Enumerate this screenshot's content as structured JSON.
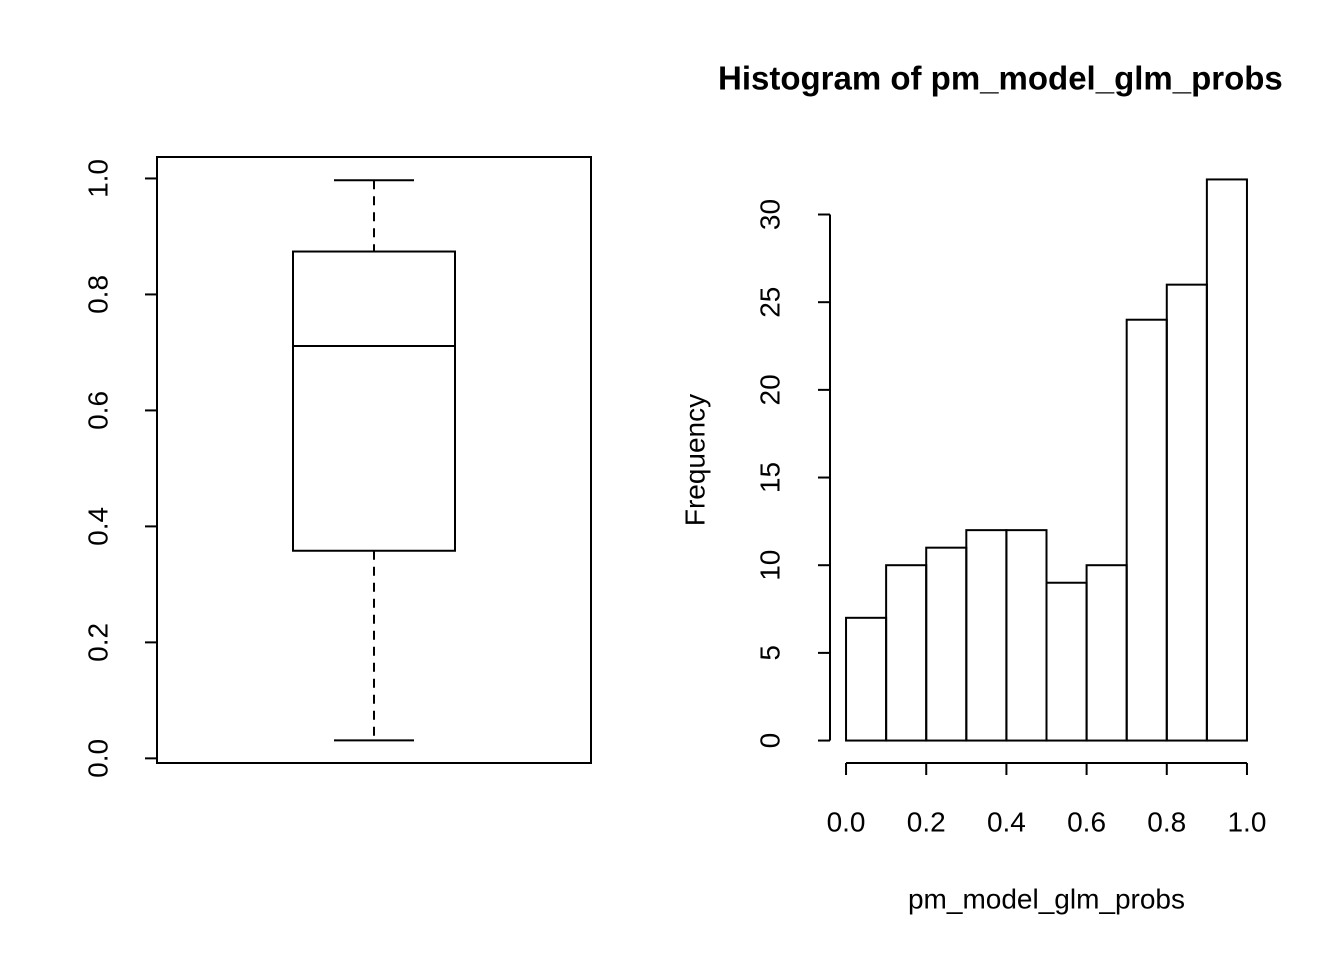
{
  "chart_data": [
    {
      "type": "box",
      "stats": {
        "min": 0.031,
        "q1": 0.358,
        "median": 0.711,
        "q3": 0.874,
        "max": 0.997
      },
      "ylim": [
        -0.008,
        1.037
      ],
      "yticks": [
        {
          "value": 0,
          "label": "0.0"
        },
        0.2,
        0.4,
        0.6,
        0.8,
        {
          "value": 1,
          "label": "1.0"
        }
      ]
    },
    {
      "type": "histogram",
      "title": "Histogram of pm_model_glm_probs",
      "xlabel": "pm_model_glm_probs",
      "ylabel": "Frequency",
      "bins": [
        0,
        0.1,
        0.2,
        0.3,
        0.4,
        0.5,
        0.6,
        0.7,
        0.8,
        0.9,
        1
      ],
      "values": [
        7,
        10,
        11,
        12,
        12,
        9,
        10,
        24,
        26,
        32
      ],
      "xlim": [
        -0.04,
        1.04
      ],
      "ylim": [
        -1.28,
        33.28
      ],
      "xticks": [
        {
          "value": 0,
          "label": "0.0"
        },
        0.2,
        0.4,
        0.6,
        0.8,
        {
          "value": 1,
          "label": "1.0"
        }
      ],
      "yticks": [
        0,
        5,
        10,
        15,
        20,
        25,
        30
      ]
    }
  ]
}
